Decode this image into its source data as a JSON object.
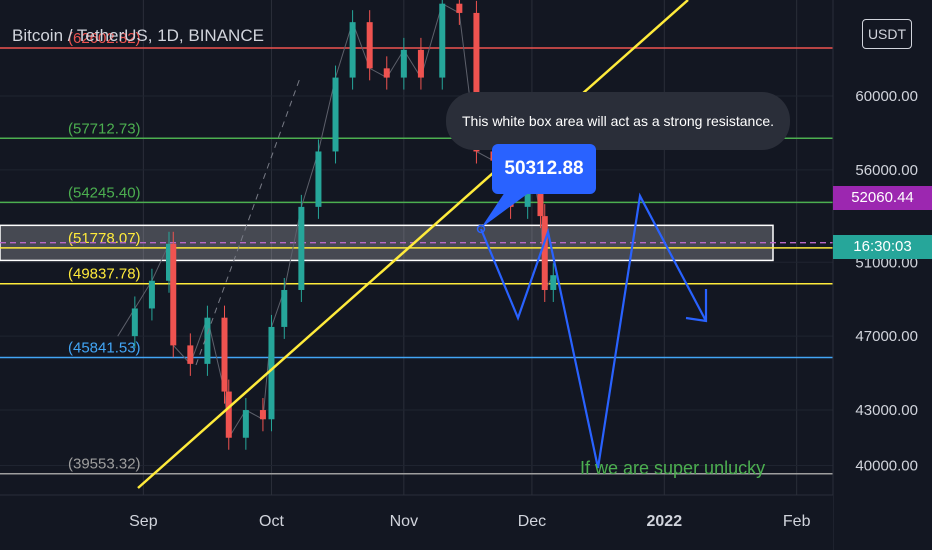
{
  "header": {
    "symbol_title": "Bitcoin / TetherUS, 1D, BINANCE",
    "currency_button": "USDT"
  },
  "annotations": {
    "resistance_note": "This white box area will act as a strong resistance.",
    "price_callout": "50312.88",
    "unlucky_note": "If we are super unlucky"
  },
  "price_tags": {
    "dashed_level": "52060.44",
    "countdown": "16:30:03"
  },
  "colors": {
    "background": "#131722",
    "up": "#26a69a",
    "down": "#ef5350",
    "trendline": "#ffeb3b",
    "projection": "#2962ff",
    "dashed_tag": "#9c27b0",
    "countdown_tag": "#26a69a"
  },
  "chart_data": {
    "type": "line",
    "title": "Bitcoin / TetherUS, 1D, BINANCE",
    "x_ticks": [
      "Sep",
      "Oct",
      "Nov",
      "Dec",
      "2022",
      "Feb"
    ],
    "y_ticks": [
      40000,
      43000,
      47000,
      51000,
      56000,
      60000
    ],
    "y_tick_labels": [
      "40000.00",
      "43000.00",
      "47000.00",
      "51000.00",
      "56000.00",
      "60000.00"
    ],
    "ylim": [
      38400,
      65200
    ],
    "levels": [
      {
        "value": 62602.82,
        "label": "(62602.82)",
        "color": "#ef5350"
      },
      {
        "value": 57712.73,
        "label": "(57712.73)",
        "color": "#4caf50"
      },
      {
        "value": 54245.4,
        "label": "(54245.40)",
        "color": "#4caf50"
      },
      {
        "value": 51778.07,
        "label": "(51778.07)",
        "color": "#ffeb3b"
      },
      {
        "value": 49837.78,
        "label": "(49837.78)",
        "color": "#ffeb3b"
      },
      {
        "value": 45841.53,
        "label": "(45841.53)",
        "color": "#42a5f5"
      },
      {
        "value": 39553.32,
        "label": "(39553.32)",
        "color": "#9e9e9e"
      }
    ],
    "dashed_level": 52060.44,
    "resistance_zone": [
      51100,
      53000
    ],
    "price_series": {
      "name": "BTCUSDT",
      "x": [
        "2021-08-26",
        "2021-08-30",
        "2021-09-03",
        "2021-09-07",
        "2021-09-08",
        "2021-09-12",
        "2021-09-16",
        "2021-09-20",
        "2021-09-21",
        "2021-09-25",
        "2021-09-29",
        "2021-10-01",
        "2021-10-04",
        "2021-10-08",
        "2021-10-12",
        "2021-10-16",
        "2021-10-20",
        "2021-10-24",
        "2021-10-28",
        "2021-11-01",
        "2021-11-05",
        "2021-11-10",
        "2021-11-14",
        "2021-11-18",
        "2021-11-22",
        "2021-11-26",
        "2021-11-30",
        "2021-12-03",
        "2021-12-04",
        "2021-12-06"
      ],
      "values": [
        47000,
        48500,
        50000,
        52000,
        46500,
        45500,
        48000,
        44000,
        41500,
        43000,
        42500,
        47500,
        49500,
        54000,
        57000,
        61000,
        64000,
        61500,
        61000,
        62500,
        61000,
        65000,
        64500,
        57000,
        56500,
        54000,
        57500,
        53500,
        49500,
        50300
      ]
    }
  }
}
